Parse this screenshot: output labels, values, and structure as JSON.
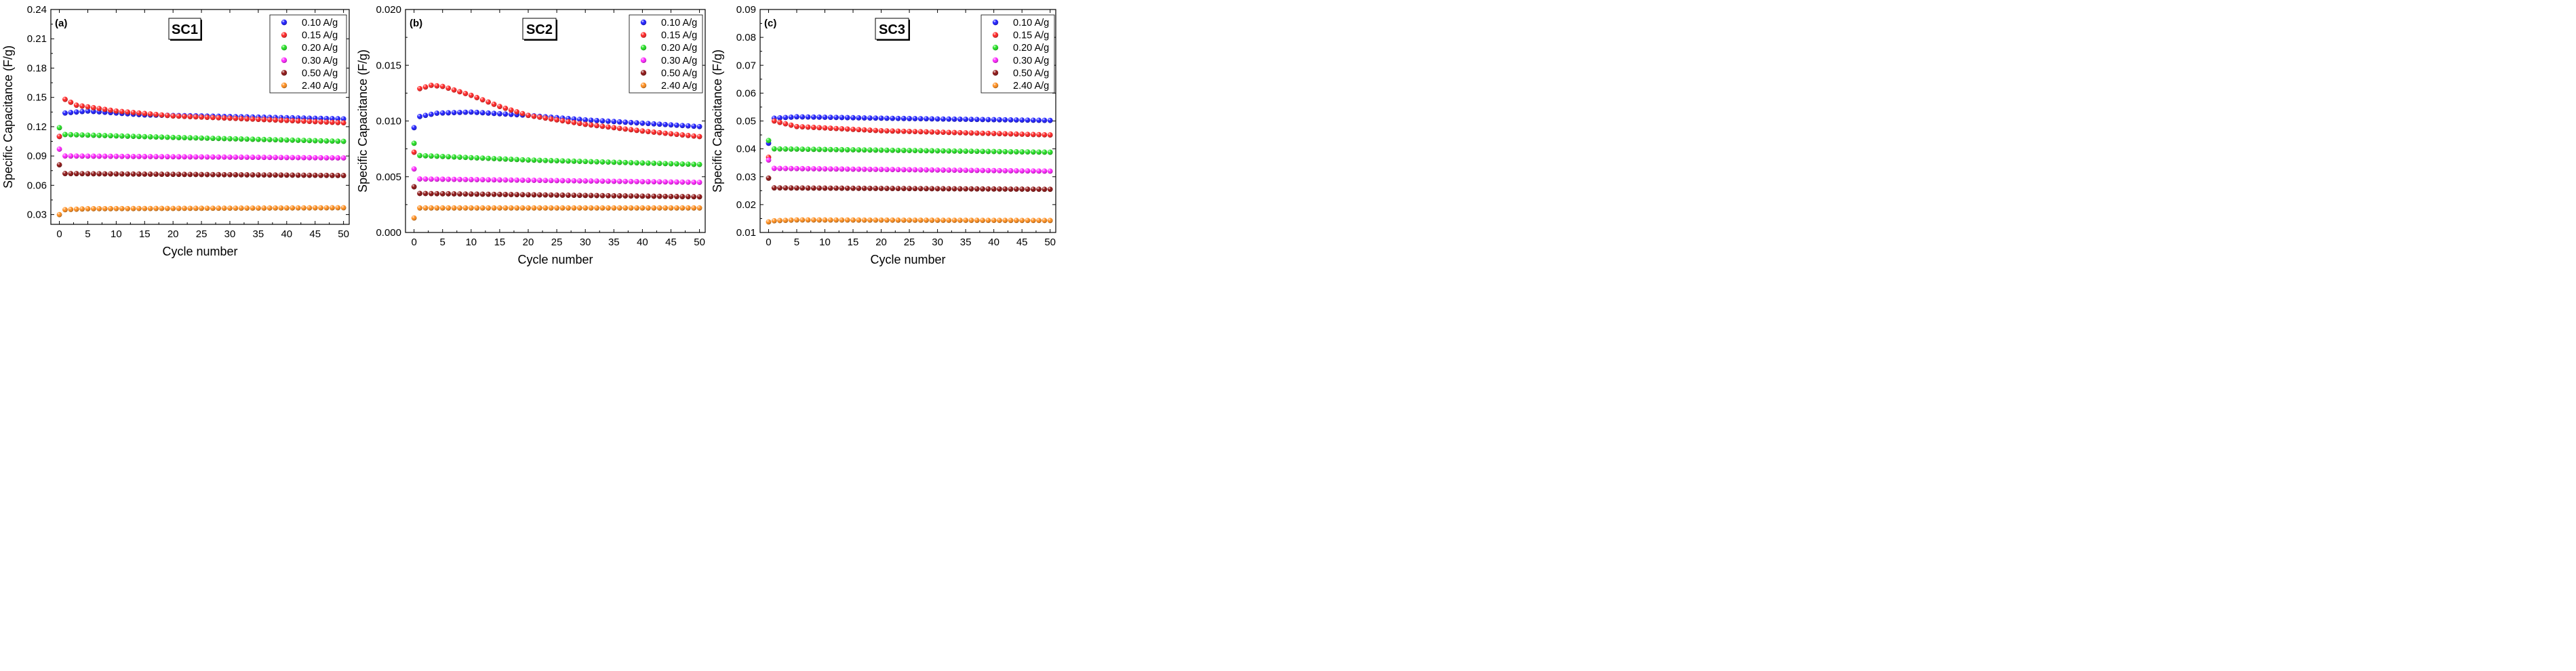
{
  "chart_data": [
    {
      "type": "scatter",
      "panel_label": "(a)",
      "title": "SC1",
      "xlabel": "Cycle number",
      "ylabel": "Specific Capacitance (F/g)",
      "xlim": [
        -1.5,
        51
      ],
      "ylim": [
        0.02,
        0.24
      ],
      "xticks": [
        0,
        5,
        10,
        15,
        20,
        25,
        30,
        35,
        40,
        45,
        50
      ],
      "yticks": [
        0.03,
        0.06,
        0.09,
        0.12,
        0.15,
        0.18,
        0.21,
        0.24
      ],
      "ytick_labels": [
        "0.03",
        "0.06",
        "0.09",
        "0.12",
        "0.15",
        "0.18",
        "0.21",
        "0.24"
      ],
      "legend_position": "top-right",
      "series": [
        {
          "name": "0.10 A/g",
          "color": "#1a1aff",
          "first": 0.11,
          "anchors": [
            [
              1,
              0.134
            ],
            [
              5,
              0.136
            ],
            [
              15,
              0.132
            ],
            [
              25,
              0.131
            ],
            [
              50,
              0.128
            ]
          ]
        },
        {
          "name": "0.15 A/g",
          "color": "#ff2020",
          "first": 0.11,
          "anchors": [
            [
              1,
              0.148
            ],
            [
              3,
              0.142
            ],
            [
              10,
              0.136
            ],
            [
              20,
              0.131
            ],
            [
              50,
              0.124
            ]
          ]
        },
        {
          "name": "0.20 A/g",
          "color": "#20e020",
          "first": 0.119,
          "anchors": [
            [
              1,
              0.112
            ],
            [
              20,
              0.109
            ],
            [
              50,
              0.105
            ]
          ]
        },
        {
          "name": "0.30 A/g",
          "color": "#ff20ff",
          "first": 0.097,
          "anchors": [
            [
              1,
              0.09
            ],
            [
              50,
              0.088
            ]
          ]
        },
        {
          "name": "0.50 A/g",
          "color": "#8b0f0f",
          "first": 0.081,
          "anchors": [
            [
              1,
              0.072
            ],
            [
              50,
              0.07
            ]
          ]
        },
        {
          "name": "2.40 A/g",
          "color": "#ff8c1a",
          "first": 0.03,
          "anchors": [
            [
              1,
              0.035
            ],
            [
              5,
              0.036
            ],
            [
              50,
              0.037
            ]
          ]
        }
      ]
    },
    {
      "type": "scatter",
      "panel_label": "(b)",
      "title": "SC2",
      "xlabel": "Cycle number",
      "ylabel": "Specific Capacitance (F/g)",
      "xlim": [
        -1.5,
        51
      ],
      "ylim": [
        0.0,
        0.02
      ],
      "xticks": [
        0,
        5,
        10,
        15,
        20,
        25,
        30,
        35,
        40,
        45,
        50
      ],
      "yticks": [
        0.0,
        0.005,
        0.01,
        0.015,
        0.02
      ],
      "ytick_labels": [
        "0.000",
        "0.005",
        "0.010",
        "0.015",
        "0.020"
      ],
      "legend_position": "top-right",
      "series": [
        {
          "name": "0.10 A/g",
          "color": "#1a1aff",
          "first": 0.0094,
          "anchors": [
            [
              1,
              0.0104
            ],
            [
              4,
              0.0107
            ],
            [
              10,
              0.0108
            ],
            [
              20,
              0.0105
            ],
            [
              30,
              0.0101
            ],
            [
              50,
              0.0095
            ]
          ]
        },
        {
          "name": "0.15 A/g",
          "color": "#ff2020",
          "first": 0.0072,
          "anchors": [
            [
              1,
              0.0129
            ],
            [
              3,
              0.0132
            ],
            [
              5,
              0.0131
            ],
            [
              10,
              0.0123
            ],
            [
              15,
              0.0113
            ],
            [
              20,
              0.0105
            ],
            [
              30,
              0.0097
            ],
            [
              40,
              0.0091
            ],
            [
              50,
              0.0086
            ]
          ]
        },
        {
          "name": "0.20 A/g",
          "color": "#20e020",
          "first": 0.008,
          "anchors": [
            [
              1,
              0.0069
            ],
            [
              20,
              0.0065
            ],
            [
              50,
              0.0061
            ]
          ]
        },
        {
          "name": "0.30 A/g",
          "color": "#ff20ff",
          "first": 0.0057,
          "anchors": [
            [
              1,
              0.0048
            ],
            [
              50,
              0.0045
            ]
          ]
        },
        {
          "name": "0.50 A/g",
          "color": "#8b0f0f",
          "first": 0.0041,
          "anchors": [
            [
              1,
              0.0035
            ],
            [
              50,
              0.0032
            ]
          ]
        },
        {
          "name": "2.40 A/g",
          "color": "#ff8c1a",
          "first": 0.0013,
          "anchors": [
            [
              1,
              0.0022
            ],
            [
              50,
              0.0022
            ]
          ]
        }
      ]
    },
    {
      "type": "scatter",
      "panel_label": "(c)",
      "title": "SC3",
      "xlabel": "Cycle number",
      "ylabel": "Specific Capacitance (F/g)",
      "xlim": [
        -1.5,
        51
      ],
      "ylim": [
        0.01,
        0.09
      ],
      "xticks": [
        0,
        5,
        10,
        15,
        20,
        25,
        30,
        35,
        40,
        45,
        50
      ],
      "yticks": [
        0.01,
        0.02,
        0.03,
        0.04,
        0.05,
        0.06,
        0.07,
        0.08,
        0.09
      ],
      "ytick_labels": [
        "0.01",
        "0.02",
        "0.03",
        "0.04",
        "0.05",
        "0.06",
        "0.07",
        "0.08",
        "0.09"
      ],
      "legend_position": "top-right",
      "series": [
        {
          "name": "0.10 A/g",
          "color": "#1a1aff",
          "first": 0.042,
          "anchors": [
            [
              1,
              0.051
            ],
            [
              5,
              0.0515
            ],
            [
              20,
              0.051
            ],
            [
              50,
              0.0502
            ]
          ]
        },
        {
          "name": "0.15 A/g",
          "color": "#ff2020",
          "first": 0.037,
          "anchors": [
            [
              1,
              0.05
            ],
            [
              5,
              0.048
            ],
            [
              20,
              0.0465
            ],
            [
              50,
              0.045
            ]
          ]
        },
        {
          "name": "0.20 A/g",
          "color": "#20e020",
          "first": 0.043,
          "anchors": [
            [
              1,
              0.04
            ],
            [
              50,
              0.0388
            ]
          ]
        },
        {
          "name": "0.30 A/g",
          "color": "#ff20ff",
          "first": 0.036,
          "anchors": [
            [
              1,
              0.033
            ],
            [
              50,
              0.032
            ]
          ]
        },
        {
          "name": "0.50 A/g",
          "color": "#8b0f0f",
          "first": 0.0295,
          "anchors": [
            [
              1,
              0.026
            ],
            [
              50,
              0.0255
            ]
          ]
        },
        {
          "name": "2.40 A/g",
          "color": "#ff8c1a",
          "first": 0.0138,
          "anchors": [
            [
              1,
              0.0142
            ],
            [
              5,
              0.0145
            ],
            [
              50,
              0.0143
            ]
          ]
        }
      ]
    }
  ]
}
